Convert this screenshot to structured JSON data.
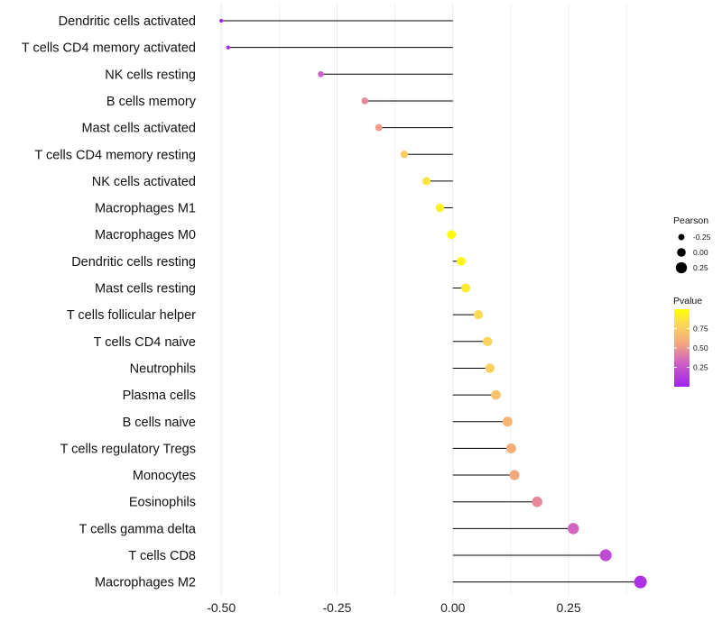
{
  "chart_data": {
    "type": "lollipop",
    "categories": [
      "Dendritic cells activated",
      "T cells CD4 memory activated",
      "NK cells resting",
      "B cells memory",
      "Mast cells activated",
      "T cells CD4 memory resting",
      "NK cells activated",
      "Macrophages M1",
      "Macrophages M0",
      "Dendritic cells resting",
      "Mast cells resting",
      "T cells follicular helper",
      "T cells CD4 naive",
      "Neutrophils",
      "Plasma cells",
      "B cells naive",
      "T cells regulatory  Tregs ",
      "Monocytes",
      "Eosinophils",
      "T cells gamma delta",
      "T cells CD8",
      "Macrophages M2"
    ],
    "values": [
      -0.5,
      -0.485,
      -0.285,
      -0.19,
      -0.16,
      -0.105,
      -0.057,
      -0.028,
      -0.003,
      0.018,
      0.028,
      0.055,
      0.075,
      0.08,
      0.093,
      0.118,
      0.126,
      0.133,
      0.182,
      0.26,
      0.33,
      0.405
    ],
    "pvalues": [
      0.02,
      0.05,
      0.3,
      0.45,
      0.52,
      0.75,
      0.87,
      0.93,
      0.99,
      0.95,
      0.9,
      0.82,
      0.78,
      0.77,
      0.7,
      0.63,
      0.6,
      0.57,
      0.45,
      0.32,
      0.2,
      0.08
    ],
    "xlim": [
      -0.52,
      0.425
    ],
    "xticks": [
      -0.5,
      -0.25,
      0.0,
      0.25
    ],
    "xtick_labels": [
      "-0.50",
      "-0.25",
      "0.00",
      "0.25"
    ],
    "title": "",
    "xlabel": "",
    "ylabel": "",
    "grid": true,
    "legend_position": "right",
    "size_legend": {
      "title": "Pearson",
      "entries": [
        {
          "label": "-0.25",
          "value": -0.25
        },
        {
          "label": "0.00",
          "value": 0.0
        },
        {
          "label": "0.25",
          "value": 0.25
        }
      ]
    },
    "color_legend": {
      "title": "Pvalue",
      "labels": [
        "0.75",
        "0.50",
        "0.25"
      ],
      "values": [
        0.75,
        0.5,
        0.25
      ],
      "range": [
        0.0,
        1.0
      ],
      "low_color": "#a020f0",
      "high_color": "#ffff00"
    },
    "colors": {
      "stem": "#000000",
      "grid": "#ebebeb",
      "palette": [
        "#a020f0",
        "#cf5fc5",
        "#f2a47e",
        "#fdd65c",
        "#ffff00"
      ]
    }
  }
}
